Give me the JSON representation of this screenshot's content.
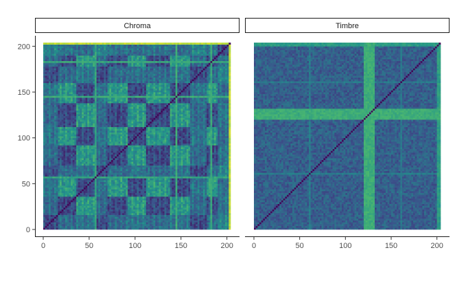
{
  "chart_data": {
    "type": "heatmap",
    "title": "",
    "xlabel": "",
    "ylabel": "",
    "facets": [
      "Chroma",
      "Timbre"
    ],
    "x_range": [
      0,
      204
    ],
    "y_range": [
      0,
      204
    ],
    "x_ticks": [
      0,
      50,
      100,
      150,
      200
    ],
    "y_ticks": [
      0,
      50,
      100,
      150,
      200
    ],
    "colormap": "viridis",
    "grid": false,
    "legend": "none",
    "panels": [
      {
        "facet": "Chroma",
        "description": "self-similarity matrix, dark diagonal, repeating block structure",
        "block_boundaries": [
          0,
          15,
          36,
          58,
          70,
          91,
          112,
          126,
          138,
          160,
          178,
          190,
          204
        ],
        "block_pattern": [
          1,
          0,
          2,
          1,
          0,
          2,
          0,
          0,
          2,
          1,
          0,
          3
        ],
        "block_levels": [
          0.42,
          0.32,
          0.5,
          0.36
        ],
        "bright_columns": [
          [
            202,
            204,
            0.9
          ],
          [
            144,
            146,
            0.62
          ],
          [
            182,
            184,
            0.6
          ],
          [
            56,
            58,
            0.58
          ]
        ]
      },
      {
        "facet": "Timbre",
        "description": "self-similarity matrix, dark diagonal, bright cross band",
        "base_level": 0.3,
        "bright_band": [
          120,
          132
        ],
        "bright_band_level": 0.62,
        "bright_columns": [
          [
            200,
            204,
            0.55
          ],
          [
            60,
            62,
            0.42
          ],
          [
            160,
            162,
            0.4
          ]
        ]
      }
    ]
  }
}
